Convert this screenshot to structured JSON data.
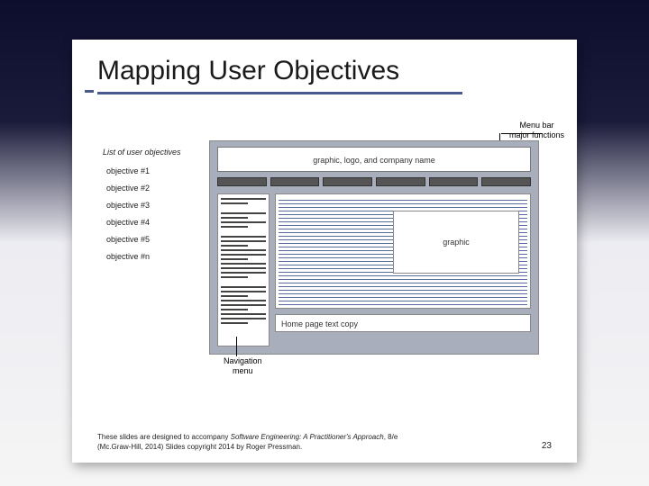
{
  "title": "Mapping User Objectives",
  "objectives_label": "List of user objectives",
  "objectives": [
    "objective #1",
    "objective #2",
    "objective #3",
    "objective #4",
    "objective #5",
    "",
    "objective #n"
  ],
  "menu_label_l1": "Menu bar",
  "menu_label_l2": "major functions",
  "mockup_header": "graphic, logo, and company name",
  "graphic_label": "graphic",
  "textcopy_label": "Home page text copy",
  "nav_label_l1": "Navigation",
  "nav_label_l2": "menu",
  "footer_l1_a": "These slides are designed to accompany ",
  "footer_l1_b": "Software Engineering: A Practitioner's Approach",
  "footer_l1_c": ", 8/e",
  "footer_l2": "(Mc.Graw-Hill, 2014) Slides copyright 2014 by Roger Pressman.",
  "page_number": "23",
  "menubar_items": 6
}
